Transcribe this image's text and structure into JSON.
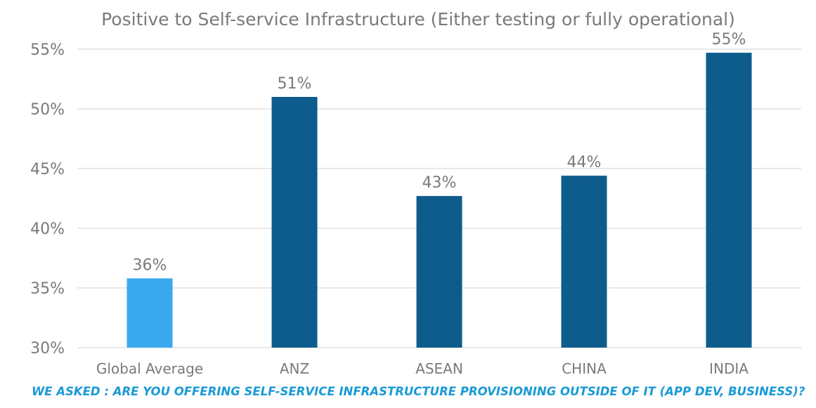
{
  "chart_data": {
    "type": "bar",
    "title": "Positive to Self-service Infrastructure (Either testing or fully operational)",
    "categories": [
      "Global Average",
      "ANZ",
      "ASEAN",
      "CHINA",
      "INDIA"
    ],
    "values": [
      35.8,
      51.0,
      42.7,
      44.4,
      54.7
    ],
    "data_labels": [
      "36%",
      "51%",
      "43%",
      "44%",
      "55%"
    ],
    "bar_colors": [
      "#3aa8ee",
      "#0e5c8c",
      "#0e5c8c",
      "#0e5c8c",
      "#0e5c8c"
    ],
    "ylim": [
      30,
      55
    ],
    "yticks": [
      30,
      35,
      40,
      45,
      50,
      55
    ],
    "ytick_labels": [
      "30%",
      "35%",
      "40%",
      "45%",
      "50%",
      "55%"
    ],
    "grid": true,
    "xlabel": "",
    "ylabel": ""
  },
  "footnote": "WE ASKED : ARE YOU OFFERING SELF-SERVICE INFRASTRUCTURE PROVISIONING OUTSIDE OF IT (APP DEV, BUSINESS)?",
  "footnote_color": "#1a9ad6"
}
